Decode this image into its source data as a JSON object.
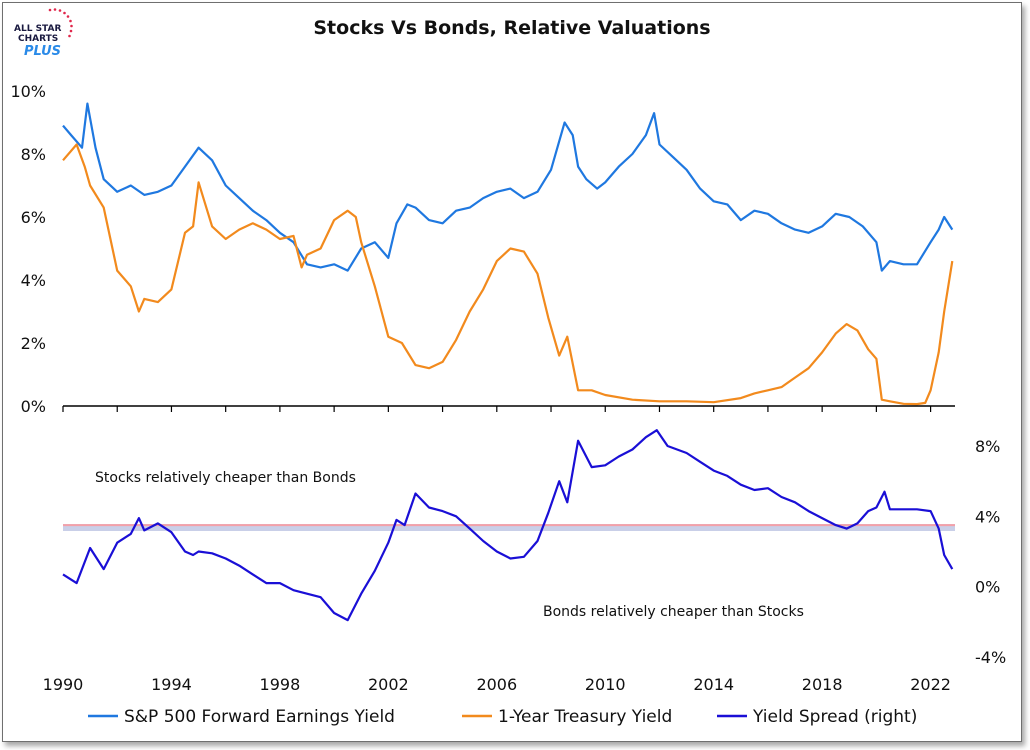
{
  "logo": {
    "line1": "ALL STAR",
    "line2": "CHARTS",
    "line3": "PLUS"
  },
  "chart_data": {
    "type": "line",
    "title": "Stocks Vs Bonds, Relative Valuations",
    "x_ticks": [
      "1990",
      "1994",
      "1998",
      "2002",
      "2006",
      "2010",
      "2014",
      "2018",
      "2022"
    ],
    "x_range": [
      1990,
      2022.9
    ],
    "top_panel": {
      "y_ticks": [
        "10%",
        "8%",
        "6%",
        "4%",
        "2%",
        "0%"
      ],
      "ylim": [
        0,
        10
      ],
      "series": [
        {
          "name": "S&P 500 Forward Earnings Yield",
          "color": "#1f78e0",
          "x": [
            1990,
            1990.3,
            1990.7,
            1990.9,
            1991.2,
            1991.5,
            1992,
            1992.5,
            1993,
            1993.5,
            1994,
            1994.5,
            1995,
            1995.5,
            1996,
            1996.5,
            1997,
            1997.5,
            1998,
            1998.5,
            1999,
            1999.5,
            2000,
            2000.5,
            2001,
            2001.5,
            2002,
            2002.3,
            2002.7,
            2003,
            2003.5,
            2004,
            2004.5,
            2005,
            2005.5,
            2006,
            2006.5,
            2007,
            2007.5,
            2008,
            2008.5,
            2008.8,
            2009,
            2009.3,
            2009.7,
            2010,
            2010.5,
            2011,
            2011.5,
            2011.8,
            2012,
            2012.5,
            2013,
            2013.5,
            2014,
            2014.5,
            2015,
            2015.5,
            2016,
            2016.5,
            2017,
            2017.5,
            2018,
            2018.5,
            2019,
            2019.5,
            2020,
            2020.2,
            2020.5,
            2021,
            2021.5,
            2022,
            2022.3,
            2022.5,
            2022.8
          ],
          "values": [
            8.9,
            8.6,
            8.2,
            9.6,
            8.2,
            7.2,
            6.8,
            7.0,
            6.7,
            6.8,
            7.0,
            7.6,
            8.2,
            7.8,
            7.0,
            6.6,
            6.2,
            5.9,
            5.5,
            5.2,
            4.5,
            4.4,
            4.5,
            4.3,
            5.0,
            5.2,
            4.7,
            5.8,
            6.4,
            6.3,
            5.9,
            5.8,
            6.2,
            6.3,
            6.6,
            6.8,
            6.9,
            6.6,
            6.8,
            7.5,
            9.0,
            8.6,
            7.6,
            7.2,
            6.9,
            7.1,
            7.6,
            8.0,
            8.6,
            9.3,
            8.3,
            7.9,
            7.5,
            6.9,
            6.5,
            6.4,
            5.9,
            6.2,
            6.1,
            5.8,
            5.6,
            5.5,
            5.7,
            6.1,
            6.0,
            5.7,
            5.2,
            4.3,
            4.6,
            4.5,
            4.5,
            5.2,
            5.6,
            6.0,
            5.6
          ]
        },
        {
          "name": "1-Year Treasury Yield",
          "color": "#f28a1d",
          "x": [
            1990,
            1990.5,
            1990.8,
            1991,
            1991.5,
            1992,
            1992.5,
            1992.8,
            1993,
            1993.5,
            1994,
            1994.5,
            1994.8,
            1995,
            1995.5,
            1996,
            1996.5,
            1997,
            1997.5,
            1998,
            1998.5,
            1998.8,
            1999,
            1999.5,
            2000,
            2000.5,
            2000.8,
            2001,
            2001.5,
            2002,
            2002.5,
            2003,
            2003.5,
            2004,
            2004.5,
            2005,
            2005.5,
            2006,
            2006.5,
            2007,
            2007.5,
            2007.9,
            2008.3,
            2008.6,
            2009,
            2009.5,
            2010,
            2011,
            2012,
            2013,
            2014,
            2015,
            2015.5,
            2016,
            2016.5,
            2017,
            2017.5,
            2018,
            2018.5,
            2018.9,
            2019.3,
            2019.7,
            2020,
            2020.2,
            2020.5,
            2021,
            2021.5,
            2021.8,
            2022,
            2022.3,
            2022.5,
            2022.8
          ],
          "values": [
            7.8,
            8.3,
            7.6,
            7.0,
            6.3,
            4.3,
            3.8,
            3.0,
            3.4,
            3.3,
            3.7,
            5.5,
            5.7,
            7.1,
            5.7,
            5.3,
            5.6,
            5.8,
            5.6,
            5.3,
            5.4,
            4.4,
            4.8,
            5.0,
            5.9,
            6.2,
            6.0,
            5.2,
            3.8,
            2.2,
            2.0,
            1.3,
            1.2,
            1.4,
            2.1,
            3.0,
            3.7,
            4.6,
            5.0,
            4.9,
            4.2,
            2.8,
            1.6,
            2.2,
            0.5,
            0.5,
            0.35,
            0.2,
            0.15,
            0.15,
            0.12,
            0.25,
            0.4,
            0.5,
            0.6,
            0.9,
            1.2,
            1.7,
            2.3,
            2.6,
            2.4,
            1.8,
            1.5,
            0.2,
            0.15,
            0.07,
            0.06,
            0.1,
            0.5,
            1.7,
            3.0,
            4.6
          ]
        }
      ]
    },
    "bottom_panel": {
      "y_ticks": [
        "8%",
        "4%",
        "0%",
        "-4%"
      ],
      "ylim": [
        -4,
        9
      ],
      "reference_line": 3.5,
      "series": [
        {
          "name": "Yield Spread (right)",
          "color": "#1a0fd6",
          "x": [
            1990,
            1990.5,
            1991,
            1991.5,
            1992,
            1992.5,
            1992.8,
            1993,
            1993.5,
            1994,
            1994.5,
            1994.8,
            1995,
            1995.5,
            1996,
            1996.5,
            1997,
            1997.5,
            1998,
            1998.5,
            1999,
            1999.5,
            2000,
            2000.5,
            2001,
            2001.5,
            2002,
            2002.3,
            2002.6,
            2003,
            2003.5,
            2004,
            2004.5,
            2005,
            2005.5,
            2006,
            2006.5,
            2007,
            2007.5,
            2007.9,
            2008.3,
            2008.6,
            2009,
            2009.5,
            2010,
            2010.5,
            2011,
            2011.5,
            2011.9,
            2012.3,
            2013,
            2013.5,
            2014,
            2014.5,
            2015,
            2015.5,
            2016,
            2016.5,
            2017,
            2017.5,
            2018,
            2018.5,
            2018.9,
            2019.3,
            2019.7,
            2020,
            2020.3,
            2020.5,
            2021,
            2021.5,
            2022,
            2022.3,
            2022.5,
            2022.8
          ],
          "values": [
            0.7,
            0.2,
            2.2,
            1.0,
            2.5,
            3.0,
            3.9,
            3.2,
            3.6,
            3.1,
            2.0,
            1.8,
            2.0,
            1.9,
            1.6,
            1.2,
            0.7,
            0.2,
            0.2,
            -0.2,
            -0.4,
            -0.6,
            -1.5,
            -1.9,
            -0.4,
            0.9,
            2.5,
            3.8,
            3.5,
            5.3,
            4.5,
            4.3,
            4.0,
            3.3,
            2.6,
            2.0,
            1.6,
            1.7,
            2.6,
            4.2,
            6.0,
            4.8,
            8.3,
            6.8,
            6.9,
            7.4,
            7.8,
            8.5,
            8.9,
            8.0,
            7.6,
            7.1,
            6.6,
            6.3,
            5.8,
            5.5,
            5.6,
            5.1,
            4.8,
            4.3,
            3.9,
            3.5,
            3.3,
            3.6,
            4.3,
            4.5,
            5.4,
            4.4,
            4.4,
            4.4,
            4.3,
            3.3,
            1.8,
            1.0
          ]
        }
      ]
    },
    "annotations": [
      "Stocks relatively cheaper than Bonds",
      "Bonds relatively cheaper than Stocks"
    ],
    "legend_placement": "bottom"
  }
}
